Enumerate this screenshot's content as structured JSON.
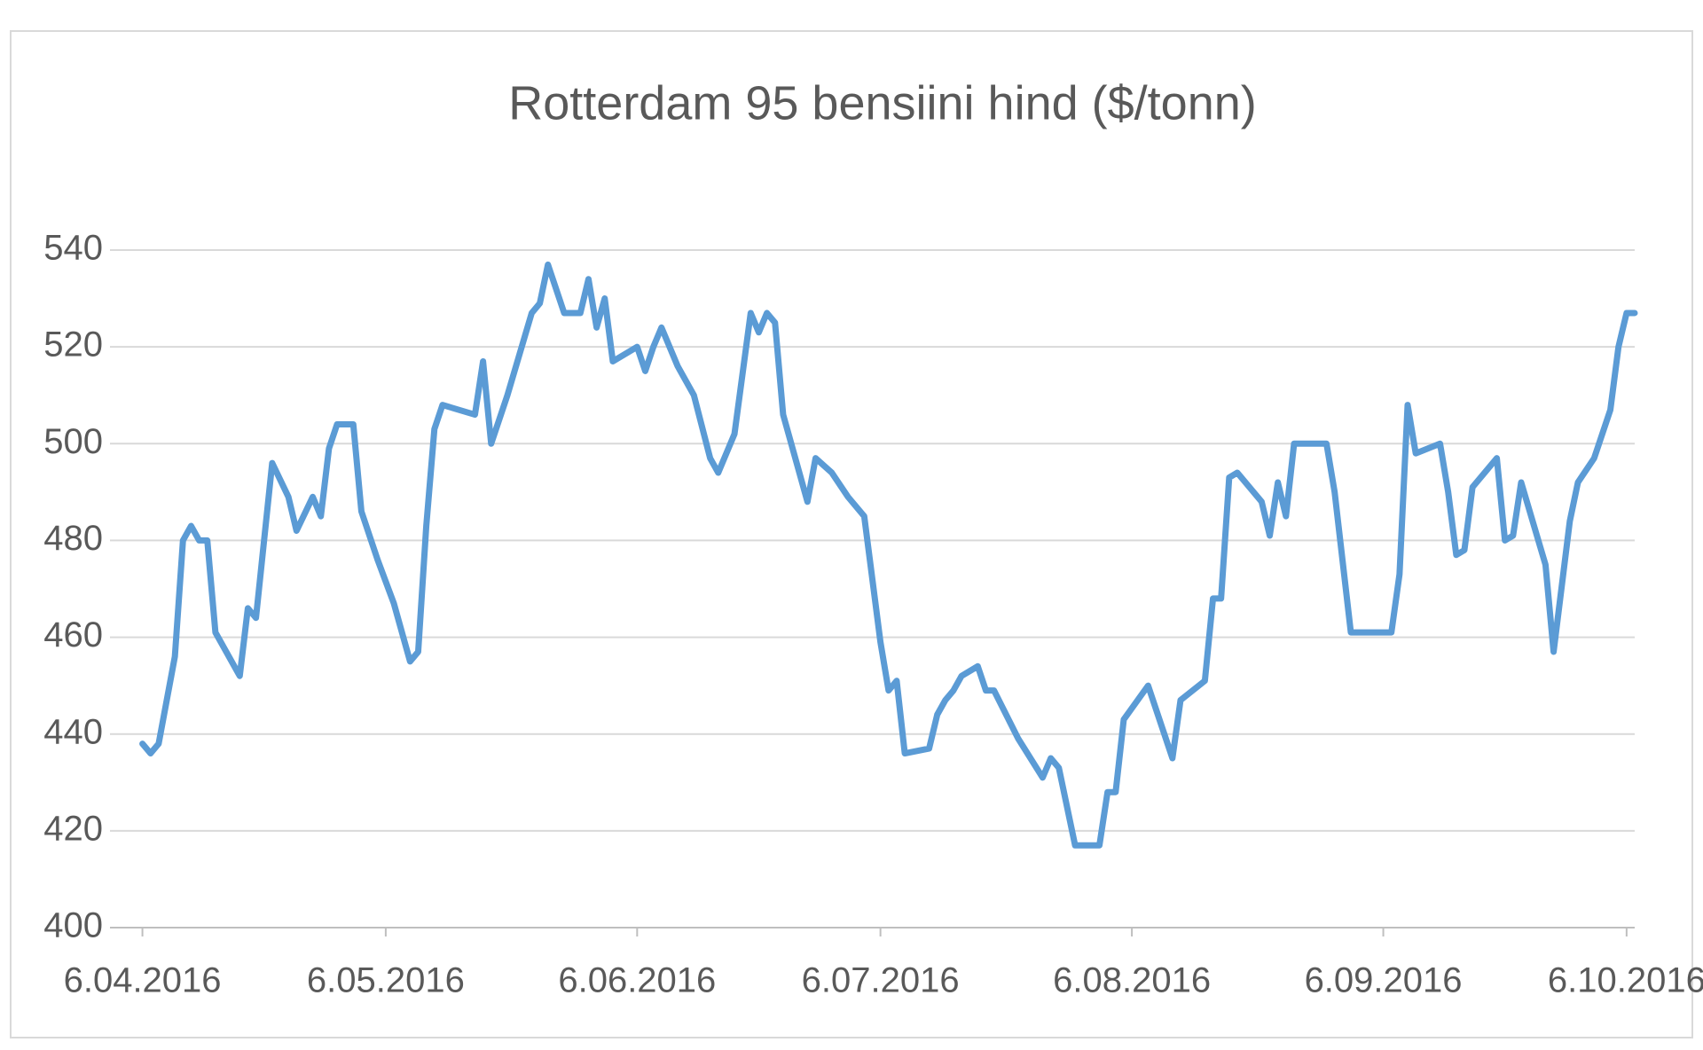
{
  "chart_data": {
    "type": "line",
    "title": "Rotterdam 95 bensiini hind ($/tonn)",
    "x": [
      "2016-04-06",
      "2016-04-07",
      "2016-04-08",
      "2016-04-10",
      "2016-04-11",
      "2016-04-12",
      "2016-04-13",
      "2016-04-14",
      "2016-04-15",
      "2016-04-18",
      "2016-04-19",
      "2016-04-20",
      "2016-04-22",
      "2016-04-24",
      "2016-04-25",
      "2016-04-27",
      "2016-04-28",
      "2016-04-29",
      "2016-04-30",
      "2016-05-02",
      "2016-05-03",
      "2016-05-05",
      "2016-05-07",
      "2016-05-09",
      "2016-05-10",
      "2016-05-11",
      "2016-05-12",
      "2016-05-13",
      "2016-05-17",
      "2016-05-18",
      "2016-05-19",
      "2016-05-21",
      "2016-05-24",
      "2016-05-25",
      "2016-05-26",
      "2016-05-28",
      "2016-05-30",
      "2016-05-31",
      "2016-06-01",
      "2016-06-02",
      "2016-06-03",
      "2016-06-06",
      "2016-06-07",
      "2016-06-08",
      "2016-06-09",
      "2016-06-11",
      "2016-06-13",
      "2016-06-15",
      "2016-06-16",
      "2016-06-18",
      "2016-06-20",
      "2016-06-21",
      "2016-06-22",
      "2016-06-23",
      "2016-06-24",
      "2016-06-27",
      "2016-06-28",
      "2016-06-30",
      "2016-07-02",
      "2016-07-04",
      "2016-07-06",
      "2016-07-07",
      "2016-07-08",
      "2016-07-09",
      "2016-07-12",
      "2016-07-13",
      "2016-07-14",
      "2016-07-15",
      "2016-07-16",
      "2016-07-18",
      "2016-07-19",
      "2016-07-20",
      "2016-07-23",
      "2016-07-26",
      "2016-07-27",
      "2016-07-28",
      "2016-07-30",
      "2016-08-02",
      "2016-08-03",
      "2016-08-04",
      "2016-08-05",
      "2016-08-08",
      "2016-08-11",
      "2016-08-12",
      "2016-08-15",
      "2016-08-16",
      "2016-08-17",
      "2016-08-18",
      "2016-08-19",
      "2016-08-22",
      "2016-08-23",
      "2016-08-24",
      "2016-08-25",
      "2016-08-26",
      "2016-08-30",
      "2016-08-31",
      "2016-09-02",
      "2016-09-07",
      "2016-09-08",
      "2016-09-09",
      "2016-09-10",
      "2016-09-13",
      "2016-09-14",
      "2016-09-15",
      "2016-09-16",
      "2016-09-17",
      "2016-09-20",
      "2016-09-21",
      "2016-09-22",
      "2016-09-23",
      "2016-09-26",
      "2016-09-27",
      "2016-09-29",
      "2016-09-30",
      "2016-10-02",
      "2016-10-04",
      "2016-10-05",
      "2016-10-06",
      "2016-10-07"
    ],
    "series": [
      {
        "color": "#5b9bd5",
        "values": [
          438,
          436,
          438,
          456,
          480,
          483,
          480,
          480,
          461,
          452,
          466,
          464,
          496,
          489,
          482,
          489,
          485,
          499,
          504,
          504,
          486,
          476,
          467,
          455,
          457,
          483,
          503,
          508,
          506,
          517,
          500,
          510,
          527,
          529,
          537,
          527,
          527,
          534,
          524,
          530,
          517,
          520,
          515,
          520,
          524,
          516,
          510,
          497,
          494,
          502,
          527,
          523,
          527,
          525,
          506,
          488,
          497,
          494,
          489,
          485,
          459,
          449,
          451,
          436,
          437,
          444,
          447,
          449,
          452,
          454,
          449,
          449,
          439,
          431,
          435,
          433,
          417,
          417,
          428,
          428,
          443,
          450,
          435,
          447,
          451,
          468,
          468,
          493,
          494,
          488,
          481,
          492,
          485,
          500,
          500,
          490,
          461,
          461,
          473,
          508,
          498,
          500,
          490,
          477,
          478,
          491,
          497,
          480,
          481,
          492,
          475,
          457,
          484,
          492,
          497,
          507,
          520,
          527,
          527
        ]
      }
    ],
    "xlim": [
      "2016-04-02",
      "2016-10-07"
    ],
    "xticks": [
      {
        "value": "2016-04-06",
        "label": "6.04.2016"
      },
      {
        "value": "2016-05-06",
        "label": "6.05.2016"
      },
      {
        "value": "2016-06-06",
        "label": "6.06.2016"
      },
      {
        "value": "2016-07-06",
        "label": "6.07.2016"
      },
      {
        "value": "2016-08-06",
        "label": "6.08.2016"
      },
      {
        "value": "2016-09-06",
        "label": "6.09.2016"
      },
      {
        "value": "2016-10-06",
        "label": "6.10.2016"
      }
    ],
    "ylim": [
      400,
      540
    ],
    "yticks": [
      400,
      420,
      440,
      460,
      480,
      500,
      520,
      540
    ],
    "grid": true
  }
}
